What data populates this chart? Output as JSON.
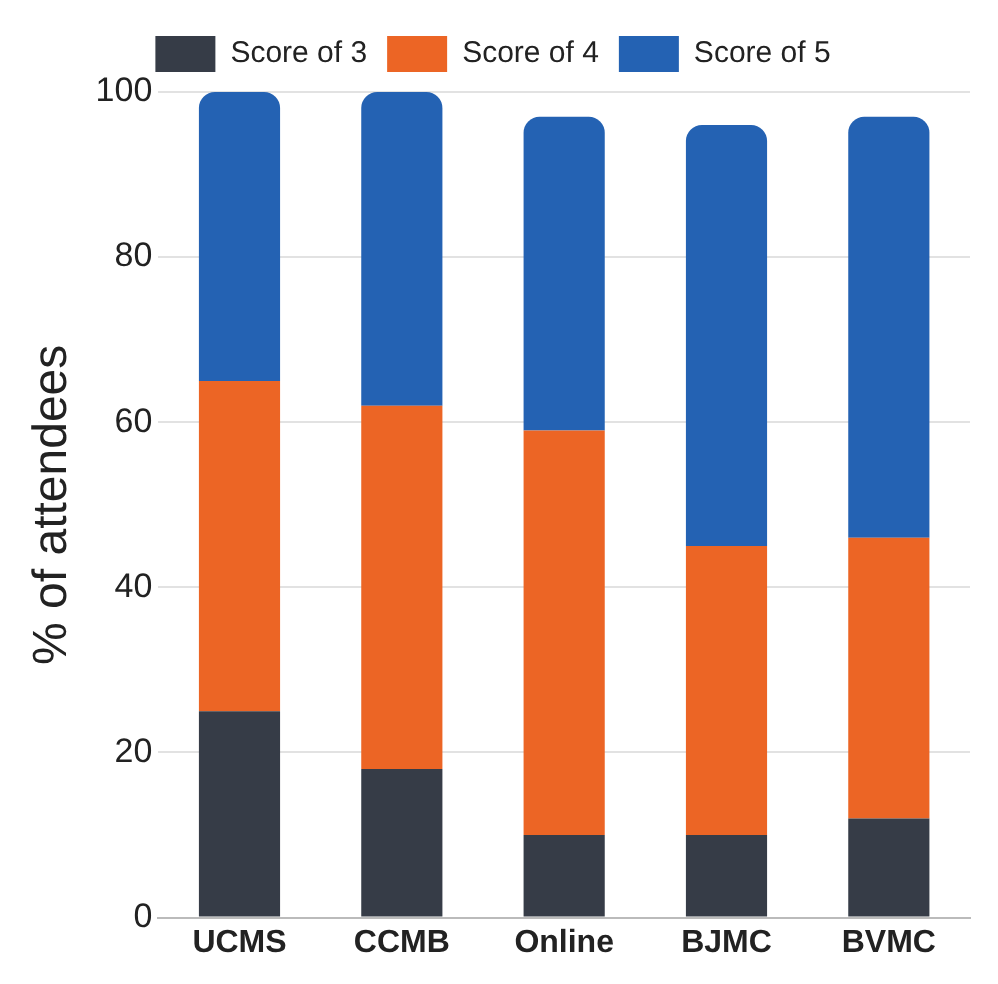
{
  "chart_data": {
    "type": "bar",
    "stacked": true,
    "ylabel": "% of attendees",
    "categories": [
      "UCMS",
      "CCMB",
      "Online",
      "BJMC",
      "BVMC"
    ],
    "series": [
      {
        "name": "Score of 3",
        "color": "#363c47",
        "values": [
          25,
          18,
          10,
          10,
          12
        ]
      },
      {
        "name": "Score of 4",
        "color": "#ec6525",
        "values": [
          40,
          44,
          49,
          35,
          34
        ]
      },
      {
        "name": "Score of 5",
        "color": "#2462b3",
        "values": [
          35,
          38,
          38,
          51,
          51
        ]
      }
    ],
    "ylim": [
      0,
      100
    ],
    "yticks": [
      0,
      20,
      40,
      60,
      80,
      100
    ],
    "grid": "y",
    "legend": "top"
  }
}
